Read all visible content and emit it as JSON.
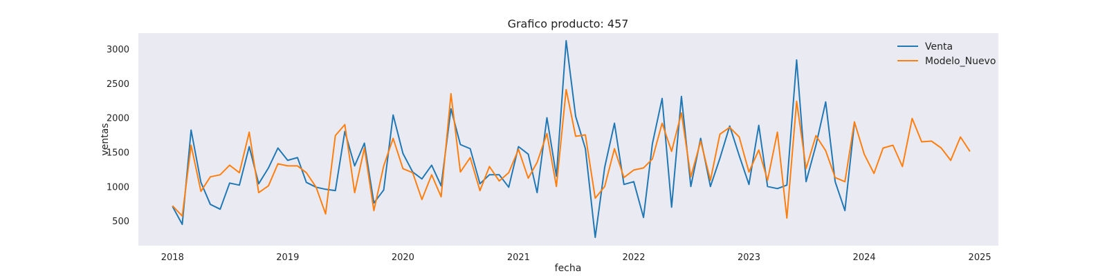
{
  "chart_data": {
    "type": "line",
    "title": "Grafico producto: 457",
    "xlabel": "fecha",
    "ylabel": "ventas",
    "x_range": [
      "2017-09-15",
      "2025-03-01"
    ],
    "ylim": [
      140,
      3230
    ],
    "x_ticks": [
      "2018",
      "2019",
      "2020",
      "2021",
      "2022",
      "2023",
      "2024",
      "2025"
    ],
    "y_ticks": [
      500,
      1000,
      1500,
      2000,
      2500,
      3000
    ],
    "grid": false,
    "legend_position": "top-right",
    "background_color": "#eaeaf2",
    "series": [
      {
        "name": "Venta",
        "color": "#1f77b4",
        "x_start": "2018-01",
        "x_step": "month",
        "values": [
          710,
          450,
          1820,
          1060,
          740,
          670,
          1050,
          1020,
          1580,
          1040,
          1270,
          1560,
          1380,
          1420,
          1060,
          990,
          960,
          940,
          1800,
          1300,
          1630,
          760,
          950,
          2040,
          1480,
          1210,
          1110,
          1310,
          1010,
          2130,
          1610,
          1550,
          1040,
          1170,
          1170,
          990,
          1580,
          1470,
          910,
          2000,
          1150,
          3120,
          2020,
          1550,
          260,
          1280,
          1920,
          1030,
          1070,
          550,
          1620,
          2280,
          700,
          2310,
          1000,
          1700,
          1000,
          1410,
          1880,
          1450,
          1030,
          1890,
          1000,
          970,
          1020,
          2840,
          1070,
          1600,
          2230,
          1070,
          650,
          1920
        ]
      },
      {
        "name": "Modelo_Nuevo",
        "color": "#ff7f0e",
        "x_start": "2018-01",
        "x_step": "month",
        "values": [
          720,
          570,
          1600,
          930,
          1140,
          1170,
          1310,
          1200,
          1790,
          910,
          1010,
          1330,
          1300,
          1300,
          1200,
          990,
          600,
          1740,
          1900,
          910,
          1560,
          650,
          1300,
          1700,
          1260,
          1200,
          810,
          1170,
          850,
          2350,
          1210,
          1420,
          940,
          1290,
          1080,
          1200,
          1540,
          1120,
          1350,
          1770,
          1000,
          2410,
          1730,
          1750,
          830,
          1000,
          1550,
          1130,
          1240,
          1270,
          1400,
          1920,
          1510,
          2070,
          1140,
          1660,
          1090,
          1760,
          1860,
          1720,
          1210,
          1530,
          1090,
          1790,
          540,
          2240,
          1260,
          1740,
          1520,
          1130,
          1070,
          1940,
          1470,
          1190,
          1560,
          1600,
          1290,
          1990,
          1650,
          1660,
          1560,
          1380,
          1720,
          1510
        ]
      }
    ]
  }
}
